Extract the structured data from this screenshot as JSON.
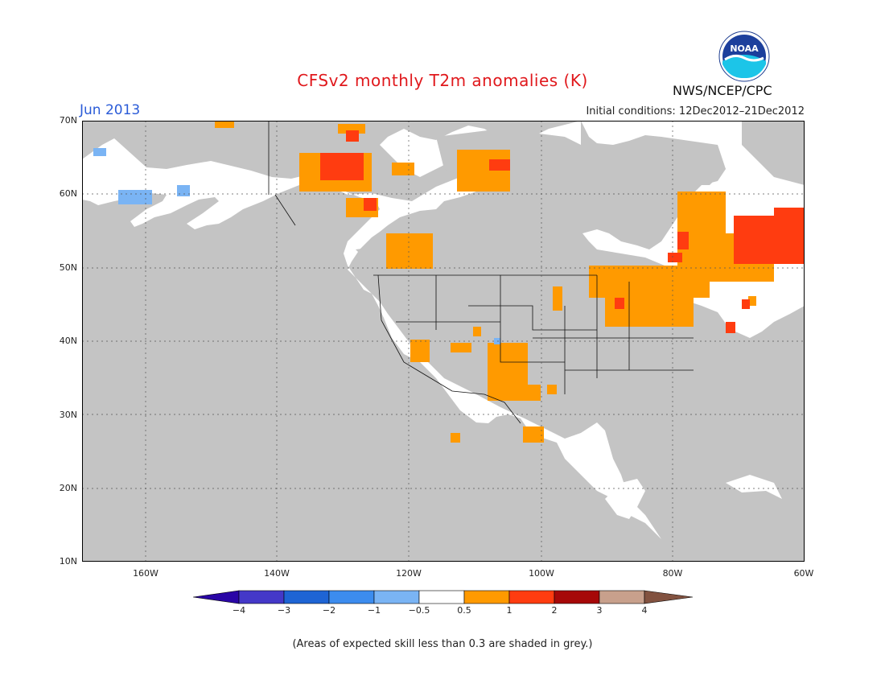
{
  "header": {
    "title": "CFSv2 monthly T2m anomalies (K)",
    "month": "Jun 2013",
    "initial_conditions": "Initial conditions: 12Dec2012–21Dec2012",
    "agency": "NWS/NCEP/CPC",
    "logo_text": "NOAA"
  },
  "map": {
    "y_ticks": [
      "70N",
      "60N",
      "50N",
      "40N",
      "30N",
      "20N",
      "10N"
    ],
    "x_ticks": [
      "160W",
      "140W",
      "120W",
      "100W",
      "80W",
      "60W"
    ],
    "background_color": "#c4c4c4",
    "land_color": "#ffffff"
  },
  "colorbar": {
    "labels": [
      "−4",
      "−3",
      "−2",
      "−1",
      "−0.5",
      "0.5",
      "1",
      "2",
      "3",
      "4"
    ],
    "colors": [
      "#2a06a6",
      "#4438c8",
      "#1e64d4",
      "#3c8cee",
      "#7ab4f4",
      "#ffffff",
      "#ff9a00",
      "#ff3c10",
      "#a60808",
      "#c8a08c",
      "#825240"
    ]
  },
  "footer": {
    "note": "(Areas of expected skill less than 0.3 are shaded in grey.)"
  }
}
